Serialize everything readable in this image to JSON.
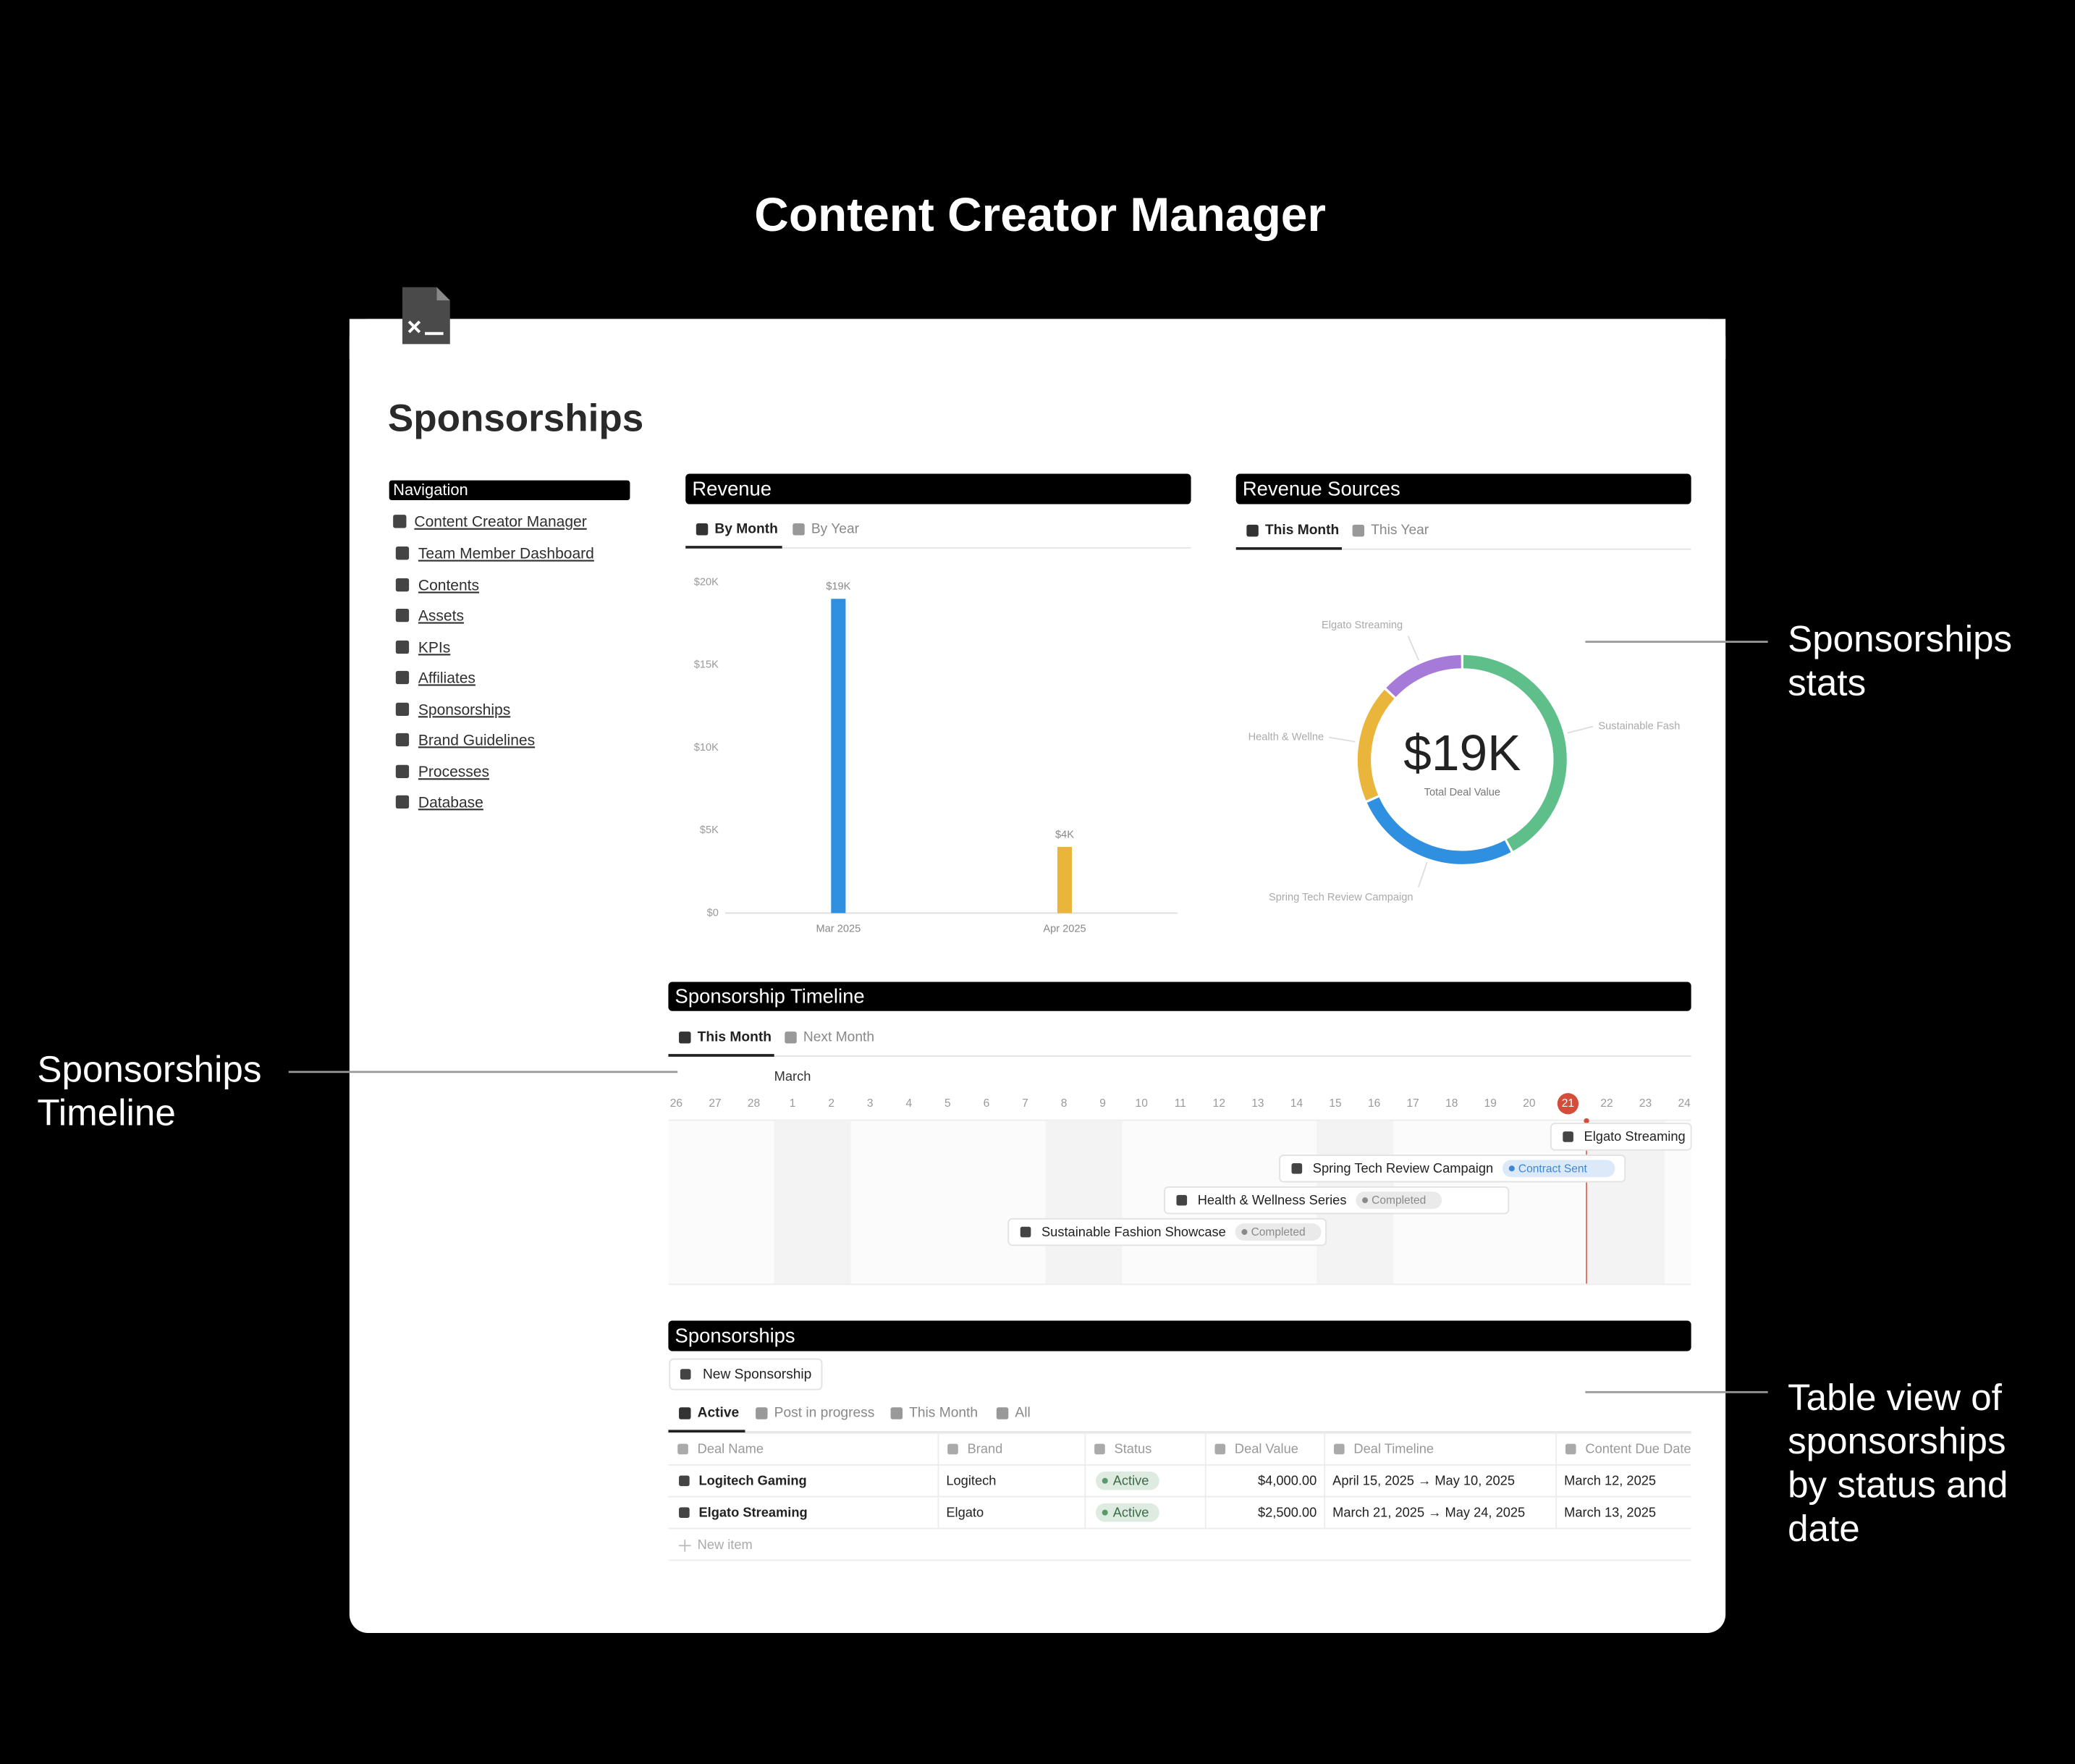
{
  "header": {
    "title": "Content Creator Manager"
  },
  "page": {
    "title": "Sponsorships"
  },
  "navigation": {
    "title": "Navigation",
    "items": [
      "Content Creator Manager",
      "Team Member Dashboard",
      "Contents",
      "Assets",
      "KPIs",
      "Affiliates",
      "Sponsorships",
      "Brand Guidelines",
      "Processes",
      "Database"
    ]
  },
  "chart_data": [
    {
      "type": "bar",
      "title": "Revenue",
      "tabs": [
        "By Month",
        "By Year"
      ],
      "categories": [
        "Mar 2025",
        "Apr 2025"
      ],
      "values": [
        19000,
        4000
      ],
      "value_labels": [
        "$19K",
        "$4K"
      ],
      "colors": [
        "#2f8fe0",
        "#e9b53a"
      ],
      "ylim": [
        0,
        20000
      ],
      "yticks": [
        {
          "value": 0,
          "label": "$0"
        },
        {
          "value": 5000,
          "label": "$5K"
        },
        {
          "value": 10000,
          "label": "$10K"
        },
        {
          "value": 15000,
          "label": "$15K"
        },
        {
          "value": 20000,
          "label": "$20K"
        }
      ]
    },
    {
      "type": "donut",
      "title": "Revenue Sources",
      "tabs": [
        "This Month",
        "This Year"
      ],
      "categories": [
        "Sustainable Fash",
        "Spring Tech Review Campaign",
        "Health & Wellne",
        "Elgato Streaming"
      ],
      "values": [
        8000,
        5000,
        3500,
        2500
      ],
      "colors": [
        "#5fbf8a",
        "#2f8fe0",
        "#e9b53a",
        "#a57ad8"
      ],
      "center_value": "$19K",
      "center_label": "Total Deal Value"
    }
  ],
  "timeline": {
    "title": "Sponsorship Timeline",
    "tabs": [
      "This Month",
      "Next Month"
    ],
    "month": "March",
    "days": [
      26,
      27,
      28,
      1,
      2,
      3,
      4,
      5,
      6,
      7,
      8,
      9,
      10,
      11,
      12,
      13,
      14,
      15,
      16,
      17,
      18,
      19,
      20,
      21,
      22,
      23,
      24
    ],
    "today": 21,
    "items": [
      {
        "name": "Elgato Streaming"
      },
      {
        "name": "Spring Tech Review Campaign",
        "status": "Contract Sent",
        "status_color": "#3d87d6"
      },
      {
        "name": "Health & Wellness Series",
        "status": "Completed",
        "status_color": "#8a8a8a"
      },
      {
        "name": "Sustainable Fashion Showcase",
        "status": "Completed",
        "status_color": "#8a8a8a"
      }
    ]
  },
  "table": {
    "title": "Sponsorships",
    "button": "New Sponsorship",
    "tabs": [
      "Active",
      "Post in progress",
      "This Month",
      "All"
    ],
    "columns": [
      "Deal Name",
      "Brand",
      "Status",
      "Deal Value",
      "Deal Timeline",
      "Content Due Date"
    ],
    "status_color": "#5a9a6a",
    "rows": [
      [
        "Logitech Gaming",
        "Logitech",
        "Active",
        "$4,000.00",
        "April 15, 2025 → May 10, 2025",
        "March 12, 2025"
      ],
      [
        "Elgato Streaming",
        "Elgato",
        "Active",
        "$2,500.00",
        "March 21, 2025 → May 24, 2025",
        "March 13, 2025"
      ]
    ],
    "new_item": "New item"
  },
  "annotations": [
    {
      "lines": [
        "Sponsorships",
        "stats"
      ]
    },
    {
      "lines": [
        "Sponsorships",
        "Timeline"
      ]
    },
    {
      "lines": [
        "Table view of",
        "sponsorships",
        "by status and",
        "date"
      ]
    }
  ]
}
